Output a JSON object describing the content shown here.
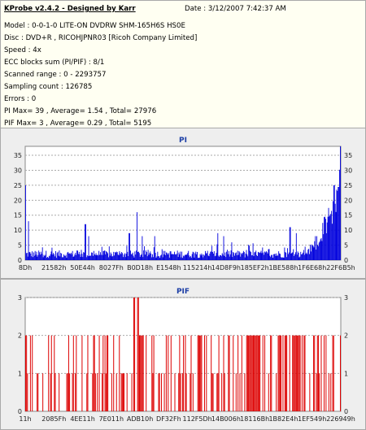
{
  "info": {
    "title": "KProbe v2.4.2 - Designed by Karr",
    "date": "Date : 3/12/2007 7:42:37 AM",
    "lines": [
      "Model : 0-0-1-0 LITE-ON DVDRW SHM-165H6S HS0E",
      "Disc : DVD+R , RICOHJPNR03 [Ricoh Company Limited]",
      "Speed : 4x",
      "ECC blocks sum (PI/PIF) : 8/1",
      "Scanned range : 0 - 2293757",
      "Sampling count : 126785",
      "Errors : 0",
      "PI Max= 39 , Average= 1.54 , Total= 27976",
      "PIF Max= 3 , Average= 0.29 , Total= 5195"
    ]
  },
  "colors": {
    "pi": "#0000dd",
    "pif": "#dd0000",
    "plot_bg": "#ffffff",
    "grid": "#aaaaaa",
    "title": "#1c3ea5"
  },
  "chart_data": [
    {
      "type": "bar",
      "title": "PI",
      "xlabel": "",
      "ylabel": "",
      "x_ticks": [
        "8Dh",
        "21582h",
        "50E44h",
        "8027Fh",
        "B0D18h",
        "E1548h",
        "115214h",
        "14D8F9h",
        "185EF2h",
        "1BE588h",
        "1F6E68h",
        "22F6B5h"
      ],
      "y_ticks": [
        0,
        5,
        10,
        15,
        20,
        25,
        30,
        35
      ],
      "ylim": [
        0,
        38
      ],
      "grid": true,
      "summary": {
        "max": 39,
        "average": 1.54,
        "total": 27976
      },
      "peaks": [
        {
          "x_fraction": 0.0,
          "value": 25
        },
        {
          "x_fraction": 0.01,
          "value": 13
        },
        {
          "x_fraction": 0.19,
          "value": 12
        },
        {
          "x_fraction": 0.2,
          "value": 8
        },
        {
          "x_fraction": 0.33,
          "value": 9
        },
        {
          "x_fraction": 0.355,
          "value": 16
        },
        {
          "x_fraction": 0.37,
          "value": 8
        },
        {
          "x_fraction": 0.41,
          "value": 8
        },
        {
          "x_fraction": 0.61,
          "value": 9
        },
        {
          "x_fraction": 0.63,
          "value": 8
        },
        {
          "x_fraction": 0.84,
          "value": 11
        },
        {
          "x_fraction": 0.86,
          "value": 9
        },
        {
          "x_fraction": 0.92,
          "value": 8
        },
        {
          "x_fraction": 0.95,
          "value": 14
        },
        {
          "x_fraction": 0.98,
          "value": 25
        },
        {
          "x_fraction": 1.0,
          "value": 39
        }
      ],
      "baseline": {
        "typical": 2,
        "range": [
          0,
          5
        ],
        "rise_start_fraction": 0.87,
        "rise_end_value": 28
      }
    },
    {
      "type": "bar",
      "title": "PIF",
      "xlabel": "",
      "ylabel": "",
      "x_ticks": [
        "11h",
        "2085Fh",
        "4EE11h",
        "7E011h",
        "ADB10h",
        "DF32Fh",
        "112F5Dh",
        "14B006h",
        "18116Bh",
        "1B82E4h",
        "1EF549h",
        "226949h"
      ],
      "y_ticks": [
        0,
        1,
        2,
        3
      ],
      "ylim": [
        0,
        3
      ],
      "grid": true,
      "summary": {
        "max": 3,
        "average": 0.29,
        "total": 5195
      },
      "peaks": [
        {
          "x_fraction": 0.345,
          "value": 3
        },
        {
          "x_fraction": 0.355,
          "value": 3
        },
        {
          "x_fraction": 0.36,
          "value": 3
        }
      ],
      "dense_value_2_ranges": [
        [
          0.355,
          0.375
        ],
        [
          0.7,
          0.73
        ],
        [
          0.73,
          0.745
        ],
        [
          0.85,
          0.875
        ]
      ],
      "sparse_pattern": "dense 1-2 error spikes across full range with gaps"
    }
  ]
}
